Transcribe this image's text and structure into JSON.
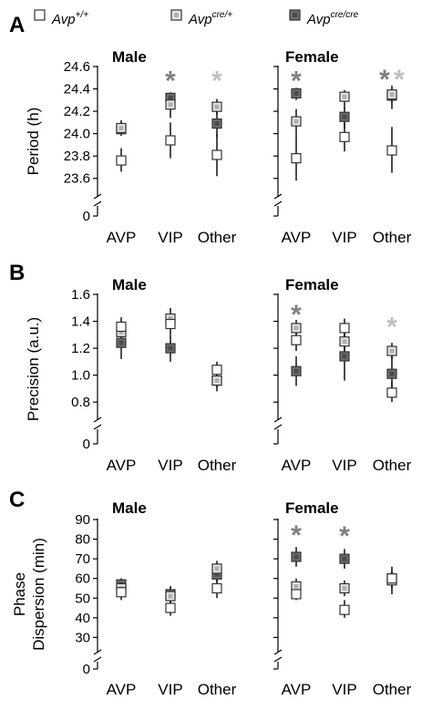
{
  "legend": [
    {
      "base": "Avp",
      "sup": "+/+",
      "fill": "#ffffff",
      "inner": "#ffffff"
    },
    {
      "base": "Avp",
      "sup": "cre/+",
      "fill": "#e6e6e6",
      "inner": "#b0b0b0"
    },
    {
      "base": "Avp",
      "sup": "cre/cre",
      "fill": "#6e6e6e",
      "inner": "#4a4a4a"
    }
  ],
  "colors": {
    "dark_star": "#808080",
    "light_star": "#c0c0c0",
    "edge": "#333333"
  },
  "chart_data": [
    {
      "type": "scatter",
      "panel": "A",
      "ylabel_lines": [
        "Period (h)"
      ],
      "ylim": [
        23.5,
        24.6
      ],
      "yticks": [
        "23.6",
        "23.8",
        "24.0",
        "24.2",
        "24.4",
        "24.6"
      ],
      "ytick_values": [
        23.6,
        23.8,
        24.0,
        24.2,
        24.4,
        24.6
      ],
      "zero_label": "0",
      "categories": [
        "AVP",
        "VIP",
        "Other"
      ],
      "groups": [
        {
          "title": "Male",
          "series": [
            {
              "values": [
                23.76,
                23.94,
                23.81
              ],
              "lo": [
                23.66,
                23.78,
                23.62
              ],
              "hi": [
                23.87,
                24.1,
                24.0
              ]
            },
            {
              "values": [
                24.05,
                24.26,
                24.24
              ],
              "lo": [
                24.02,
                24.14,
                24.17
              ],
              "hi": [
                24.1,
                24.34,
                24.31
              ]
            },
            {
              "values": [
                24.04,
                24.32,
                24.09
              ],
              "lo": [
                23.98,
                24.25,
                23.97
              ],
              "hi": [
                24.12,
                24.37,
                24.22
              ]
            }
          ],
          "stars": [
            {
              "category": 1,
              "value": 24.5,
              "tone": "dark"
            },
            {
              "category": 2,
              "value": 24.5,
              "tone": "light"
            }
          ]
        },
        {
          "title": "Female",
          "series": [
            {
              "values": [
                23.78,
                23.97,
                23.85
              ],
              "lo": [
                23.58,
                23.84,
                23.65
              ],
              "hi": [
                23.99,
                24.1,
                24.06
              ]
            },
            {
              "values": [
                24.11,
                24.33,
                24.35
              ],
              "lo": [
                23.99,
                24.22,
                24.28
              ],
              "hi": [
                24.22,
                24.39,
                24.4
              ]
            },
            {
              "values": [
                24.36,
                24.15,
                24.34
              ],
              "lo": [
                24.3,
                24.05,
                24.22
              ],
              "hi": [
                24.41,
                24.23,
                24.43
              ]
            }
          ],
          "stars": [
            {
              "category": 0,
              "value": 24.5,
              "tone": "dark"
            },
            {
              "category": 2,
              "value": 24.51,
              "tone": "dark",
              "dx": -8
            },
            {
              "category": 2,
              "value": 24.51,
              "tone": "light",
              "dx": 8
            }
          ]
        }
      ]
    },
    {
      "type": "scatter",
      "panel": "B",
      "ylabel_lines": [
        "Precision (a.u.)"
      ],
      "ylim": [
        0.72,
        1.6
      ],
      "yticks": [
        "0.8",
        "1.0",
        "1.2",
        "1.4",
        "1.6"
      ],
      "ytick_values": [
        0.8,
        1.0,
        1.2,
        1.4,
        1.6
      ],
      "zero_label": "0",
      "categories": [
        "AVP",
        "VIP",
        "Other"
      ],
      "groups": [
        {
          "title": "Male",
          "series": [
            {
              "values": [
                1.36,
                1.38,
                1.04
              ],
              "lo": [
                1.28,
                1.3,
                0.98
              ],
              "hi": [
                1.43,
                1.45,
                1.1
              ]
            },
            {
              "values": [
                1.32,
                1.42,
                0.96
              ],
              "lo": [
                1.24,
                1.35,
                0.91
              ],
              "hi": [
                1.4,
                1.5,
                1.01
              ]
            },
            {
              "values": [
                1.24,
                1.2,
                0.96
              ],
              "lo": [
                1.12,
                1.1,
                0.88
              ],
              "hi": [
                1.36,
                1.3,
                1.03
              ]
            }
          ],
          "stars": []
        },
        {
          "title": "Female",
          "series": [
            {
              "values": [
                1.26,
                1.35,
                0.87
              ],
              "lo": [
                1.18,
                1.28,
                0.8
              ],
              "hi": [
                1.33,
                1.42,
                0.95
              ]
            },
            {
              "values": [
                1.35,
                1.25,
                1.18
              ],
              "lo": [
                1.3,
                1.18,
                1.12
              ],
              "hi": [
                1.41,
                1.32,
                1.24
              ]
            },
            {
              "values": [
                1.03,
                1.14,
                1.01
              ],
              "lo": [
                0.92,
                0.96,
                0.87
              ],
              "hi": [
                1.14,
                1.32,
                1.15
              ]
            }
          ],
          "stars": [
            {
              "category": 0,
              "value": 1.47,
              "tone": "dark"
            },
            {
              "category": 2,
              "value": 1.38,
              "tone": "light"
            }
          ]
        }
      ]
    },
    {
      "type": "scatter",
      "panel": "C",
      "ylabel_lines": [
        "Phase",
        "Dispersion (min)"
      ],
      "ylim": [
        26,
        90
      ],
      "yticks": [
        "30",
        "40",
        "50",
        "60",
        "70",
        "80",
        "90"
      ],
      "ytick_values": [
        30,
        40,
        50,
        60,
        70,
        80,
        90
      ],
      "zero_label": "0",
      "categories": [
        "AVP",
        "VIP",
        "Other"
      ],
      "groups": [
        {
          "title": "Male",
          "series": [
            {
              "values": [
                53,
                45,
                55
              ],
              "lo": [
                49,
                41,
                50
              ],
              "hi": [
                57,
                49,
                61
              ]
            },
            {
              "values": [
                55,
                51,
                65
              ],
              "lo": [
                51,
                47,
                61
              ],
              "hi": [
                60,
                56,
                69
              ]
            },
            {
              "values": [
                57,
                52,
                62
              ],
              "lo": [
                53,
                48,
                58
              ],
              "hi": [
                60,
                56,
                66
              ]
            }
          ],
          "stars": []
        },
        {
          "title": "Female",
          "series": [
            {
              "values": [
                52,
                44,
                60
              ],
              "lo": [
                49,
                40,
                56
              ],
              "hi": [
                55,
                49,
                64
              ]
            },
            {
              "values": [
                56,
                55,
                59
              ],
              "lo": [
                52,
                51,
                55
              ],
              "hi": [
                60,
                59,
                63
              ]
            },
            {
              "values": [
                71,
                70,
                60
              ],
              "lo": [
                66,
                65,
                52
              ],
              "hi": [
                76,
                75,
                66
              ]
            }
          ],
          "stars": [
            {
              "category": 0,
              "value": 83.5,
              "tone": "dark"
            },
            {
              "category": 1,
              "value": 83,
              "tone": "dark"
            }
          ]
        }
      ]
    }
  ]
}
